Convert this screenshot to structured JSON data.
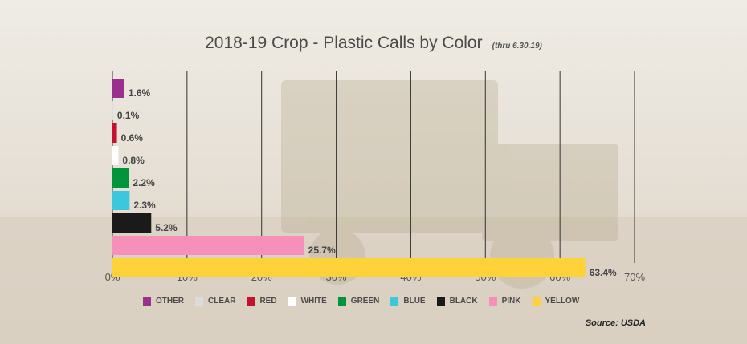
{
  "title": "2018-19 Crop - Plastic Calls by Color",
  "subtitle": "(thru 6.30.19)",
  "source": "Source: USDA",
  "colors": {
    "OTHER": "#9b2f8e",
    "CLEAR": "#dcdcdc",
    "RED": "#c8102e",
    "WHITE": "#ffffff",
    "GREEN": "#00953a",
    "BLUE": "#3cc7dc",
    "BLACK": "#1a1a1a",
    "PINK": "#f690b9",
    "YELLOW": "#ffd23a"
  },
  "chart_data": {
    "type": "bar",
    "orientation": "horizontal",
    "title": "2018-19 Crop - Plastic Calls by Color",
    "subtitle": "(thru 6.30.19)",
    "categories": [
      "OTHER",
      "CLEAR",
      "RED",
      "WHITE",
      "GREEN",
      "BLUE",
      "BLACK",
      "PINK",
      "YELLOW"
    ],
    "values": [
      1.6,
      0.1,
      0.6,
      0.8,
      2.2,
      2.3,
      5.2,
      25.7,
      63.4
    ],
    "value_labels": [
      "1.6%",
      "0.1%",
      "0.6%",
      "0.8%",
      "2.2%",
      "2.3%",
      "5.2%",
      "25.7%",
      "63.4%"
    ],
    "xlim": [
      0,
      70
    ],
    "xticks": [
      0,
      10,
      20,
      30,
      40,
      50,
      60,
      70
    ],
    "xtick_labels": [
      "0%",
      "10%",
      "20%",
      "30%",
      "40%",
      "50%",
      "60%",
      "70%"
    ],
    "grid": "vertical",
    "legend": "bottom"
  }
}
